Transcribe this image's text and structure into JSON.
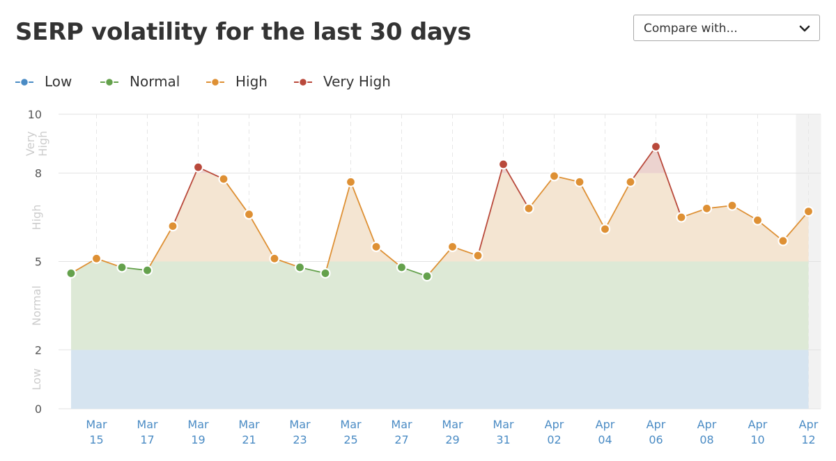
{
  "header": {
    "title": "SERP volatility for the last 30 days",
    "compare_label": "Compare with...",
    "compare_icon": "chevron-down-icon"
  },
  "legend": [
    {
      "label": "Low",
      "color": "#4a8bc4"
    },
    {
      "label": "Normal",
      "color": "#64a14c"
    },
    {
      "label": "High",
      "color": "#de9034"
    },
    {
      "label": "Very High",
      "color": "#b9493b"
    }
  ],
  "colors": {
    "low_band": "#d6e4f0",
    "normal_band": "#dde9d6",
    "high_band": "#f4e5d2",
    "very_high_band": "#ecd3cf",
    "grid": "#e2e2e2",
    "tick_label": "#4a8bc4",
    "y_tick": "#555555",
    "band_label": "#cccccc"
  },
  "chart_data": {
    "type": "line",
    "x": [
      "Mar 14",
      "Mar 15",
      "Mar 16",
      "Mar 17",
      "Mar 18",
      "Mar 19",
      "Mar 20",
      "Mar 21",
      "Mar 22",
      "Mar 23",
      "Mar 24",
      "Mar 25",
      "Mar 26",
      "Mar 27",
      "Mar 28",
      "Mar 29",
      "Mar 30",
      "Mar 31",
      "Apr 01",
      "Apr 02",
      "Apr 03",
      "Apr 04",
      "Apr 05",
      "Apr 06",
      "Apr 07",
      "Apr 08",
      "Apr 09",
      "Apr 10",
      "Apr 11",
      "Apr 12"
    ],
    "values": [
      4.6,
      5.1,
      4.8,
      4.7,
      6.2,
      8.2,
      7.8,
      6.6,
      5.1,
      4.8,
      4.6,
      7.7,
      5.5,
      4.8,
      4.5,
      5.5,
      5.2,
      8.3,
      6.8,
      7.9,
      7.7,
      6.1,
      7.7,
      8.9,
      6.5,
      6.8,
      6.9,
      6.4,
      5.7,
      6.7
    ],
    "x_tick_labels": [
      {
        "month": "Mar",
        "day": "15"
      },
      {
        "month": "Mar",
        "day": "17"
      },
      {
        "month": "Mar",
        "day": "19"
      },
      {
        "month": "Mar",
        "day": "21"
      },
      {
        "month": "Mar",
        "day": "23"
      },
      {
        "month": "Mar",
        "day": "25"
      },
      {
        "month": "Mar",
        "day": "27"
      },
      {
        "month": "Mar",
        "day": "29"
      },
      {
        "month": "Mar",
        "day": "31"
      },
      {
        "month": "Apr",
        "day": "02"
      },
      {
        "month": "Apr",
        "day": "04"
      },
      {
        "month": "Apr",
        "day": "06"
      },
      {
        "month": "Apr",
        "day": "08"
      },
      {
        "month": "Apr",
        "day": "10"
      },
      {
        "month": "Apr",
        "day": "12"
      }
    ],
    "y_ticks": [
      0,
      2,
      5,
      8,
      10
    ],
    "ylim": [
      0,
      10
    ],
    "bands": [
      {
        "name": "Low",
        "from": 0,
        "to": 2
      },
      {
        "name": "Normal",
        "from": 2,
        "to": 5
      },
      {
        "name": "High",
        "from": 5,
        "to": 8
      },
      {
        "name": "Very\nHigh",
        "from": 8,
        "to": 10
      }
    ],
    "highlighted_x": "Apr 12",
    "grid": true,
    "legend_position": "top-left"
  }
}
